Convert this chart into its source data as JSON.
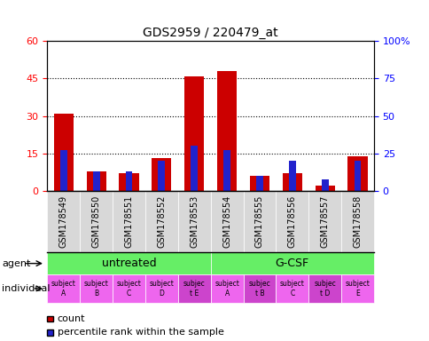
{
  "title": "GDS2959 / 220479_at",
  "samples": [
    "GSM178549",
    "GSM178550",
    "GSM178551",
    "GSM178552",
    "GSM178553",
    "GSM178554",
    "GSM178555",
    "GSM178556",
    "GSM178557",
    "GSM178558"
  ],
  "red_values": [
    31,
    8,
    7,
    13,
    46,
    48,
    6,
    7,
    2,
    14
  ],
  "blue_values_pct": [
    27,
    13,
    13,
    20,
    30,
    27,
    10,
    20,
    8,
    20
  ],
  "ylim_left": [
    0,
    60
  ],
  "ylim_right": [
    0,
    100
  ],
  "yticks_left": [
    0,
    15,
    30,
    45,
    60
  ],
  "yticks_right": [
    0,
    25,
    50,
    75,
    100
  ],
  "ytick_labels_left": [
    "0",
    "15",
    "30",
    "45",
    "60"
  ],
  "ytick_labels_right": [
    "0",
    "25",
    "50",
    "75",
    "100%"
  ],
  "agent_labels": [
    "untreated",
    "G-CSF"
  ],
  "individual_labels": [
    "subject\nA",
    "subject\nB",
    "subject\nC",
    "subject\nD",
    "subjec\nt E",
    "subject\nA",
    "subjec\nt B",
    "subject\nC",
    "subjec\nt D",
    "subject\nE"
  ],
  "individual_highlight": [
    4,
    6,
    8
  ],
  "agent_bg_color": "#66ee66",
  "individual_bg_color": "#ee66ee",
  "individual_highlight_color": "#cc44cc",
  "xticklabel_bg": "#d0d0d0",
  "bar_red": "#cc0000",
  "bar_blue": "#2222cc"
}
